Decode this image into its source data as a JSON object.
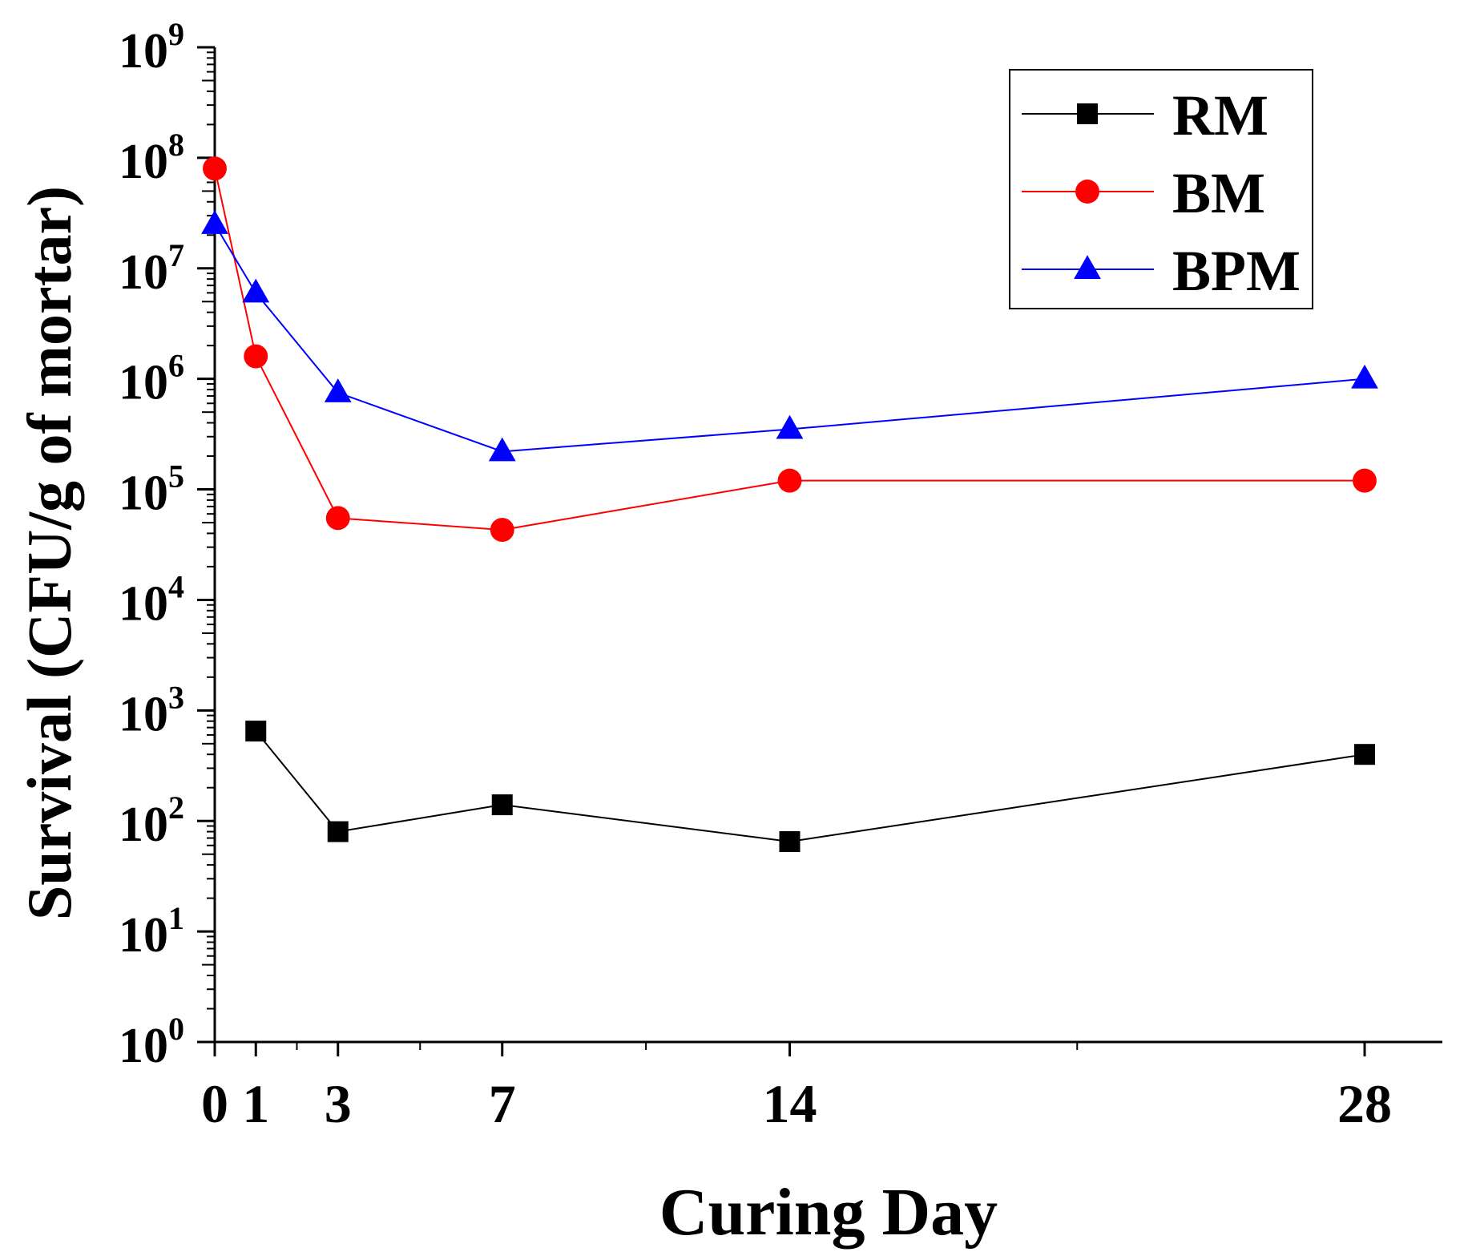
{
  "chart_data": {
    "type": "line",
    "xlabel": "Curing Day",
    "ylabel": "Survival (CFU/g of mortar)",
    "xlim": [
      0,
      30.5
    ],
    "ylim_log10": [
      0,
      9
    ],
    "y_scale": "log",
    "x_ticks": [
      0,
      1,
      3,
      7,
      14,
      28
    ],
    "x_tick_labels": [
      "0",
      "1",
      "3",
      "7",
      "14",
      "28"
    ],
    "x_minor_ticks": [
      2,
      5,
      10.5,
      21
    ],
    "y_ticks": [
      {
        "base": "10",
        "exp": "0"
      },
      {
        "base": "10",
        "exp": "1"
      },
      {
        "base": "10",
        "exp": "2"
      },
      {
        "base": "10",
        "exp": "3"
      },
      {
        "base": "10",
        "exp": "4"
      },
      {
        "base": "10",
        "exp": "5"
      },
      {
        "base": "10",
        "exp": "6"
      },
      {
        "base": "10",
        "exp": "7"
      },
      {
        "base": "10",
        "exp": "8"
      },
      {
        "base": "10",
        "exp": "9"
      }
    ],
    "legend_position": "top-right",
    "series": [
      {
        "name": "RM",
        "color": "#000000",
        "marker": "square",
        "x": [
          1,
          3,
          7,
          14,
          28
        ],
        "y": [
          650,
          80,
          140,
          65,
          400
        ]
      },
      {
        "name": "BM",
        "color": "#ff0000",
        "marker": "circle",
        "x": [
          0,
          1,
          3,
          7,
          14,
          28
        ],
        "y": [
          80000000,
          1600000,
          55000,
          43000,
          120000,
          120000
        ]
      },
      {
        "name": "BPM",
        "color": "#0000ff",
        "marker": "triangle",
        "x": [
          0,
          1,
          3,
          7,
          14,
          28
        ],
        "y": [
          25000000,
          6000000,
          750000,
          220000,
          350000,
          1000000
        ]
      }
    ]
  }
}
